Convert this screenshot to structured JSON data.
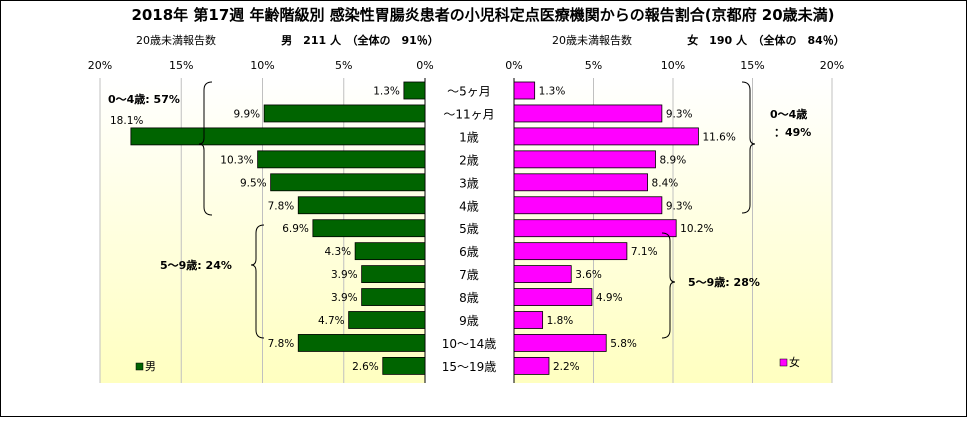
{
  "title": "2018年 第17週 年齢階級別 感染性胃腸炎患者の小児科定点医療機関からの報告割合(京都府 20歳未満)",
  "male_header": {
    "left": "20歳未満報告数",
    "right": "男　211 人　（全体の　91％）"
  },
  "female_header": {
    "left": "20歳未満報告数",
    "right": "女　190 人　（全体の　84％）"
  },
  "colors": {
    "male": "#006400",
    "female": "#ff00ff",
    "plot_bg_top": "#ffffff",
    "plot_bg_bottom": "#ffffc0"
  },
  "chart_data": {
    "type": "bar",
    "orientation": "horizontal",
    "layout": "population-pyramid",
    "categories": [
      "～5ヶ月",
      "～11ヶ月",
      "1歳",
      "2歳",
      "3歳",
      "4歳",
      "5歳",
      "6歳",
      "7歳",
      "8歳",
      "9歳",
      "10～14歳",
      "15～19歳"
    ],
    "axis_ticks": [
      0,
      5,
      10,
      15,
      20
    ],
    "axis_tick_labels": [
      "0%",
      "5%",
      "10%",
      "15%",
      "20%"
    ],
    "xlim": [
      0,
      20
    ],
    "series": [
      {
        "name": "男",
        "side": "left",
        "values": [
          1.3,
          9.9,
          18.1,
          10.3,
          9.5,
          7.8,
          6.9,
          4.3,
          3.9,
          3.9,
          4.7,
          7.8,
          2.6
        ],
        "labels": [
          "1.3%",
          "9.9%",
          "18.1%",
          "10.3%",
          "9.5%",
          "7.8%",
          "6.9%",
          "4.3%",
          "3.9%",
          "3.9%",
          "4.7%",
          "7.8%",
          "2.6%"
        ]
      },
      {
        "name": "女",
        "side": "right",
        "values": [
          1.3,
          9.3,
          11.6,
          8.9,
          8.4,
          9.3,
          10.2,
          7.1,
          3.6,
          4.9,
          1.8,
          5.8,
          2.2
        ],
        "labels": [
          "1.3%",
          "9.3%",
          "11.6%",
          "8.9%",
          "8.4%",
          "9.3%",
          "10.2%",
          "7.1%",
          "3.6%",
          "4.9%",
          "1.8%",
          "5.8%",
          "2.2%"
        ]
      }
    ],
    "annotations": {
      "male_0_4": "0～4歳: 57%",
      "male_5_9": "5～9歳: 24%",
      "female_0_4_line1": "0～4歳",
      "female_0_4_line2": "：49%",
      "female_5_9": "5～9歳: 28%"
    },
    "legend": {
      "male": "男",
      "female": "女",
      "male_position": "bottom-left",
      "female_position": "bottom-right"
    }
  }
}
